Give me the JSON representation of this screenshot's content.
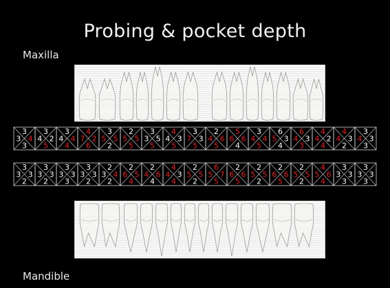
{
  "slide": {
    "title": "Probing & pocket depth",
    "maxilla_label": "Maxilla",
    "mandible_label": "Mandible"
  },
  "colors": {
    "background": "#000000",
    "text": "#f0f0f0",
    "normal_value": "#ffffff",
    "deep_pocket_value": "#e0262b",
    "grid_lines": "#d8d8d8"
  },
  "icons": {
    "upper_teeth": "maxillary-teeth-illustration",
    "lower_teeth": "mandibular-teeth-illustration"
  },
  "upper_row": [
    {
      "values": [
        "3",
        "3",
        "4",
        "3"
      ],
      "red": [
        false,
        false,
        true,
        false
      ]
    },
    {
      "values": [
        "3",
        "4",
        "2",
        "5"
      ],
      "red": [
        false,
        false,
        false,
        true
      ]
    },
    {
      "values": [
        "3",
        "4",
        "4",
        "4"
      ],
      "red": [
        false,
        false,
        true,
        true
      ]
    },
    {
      "values": [
        "4",
        "7",
        "2",
        "6"
      ],
      "red": [
        true,
        true,
        true,
        true
      ]
    },
    {
      "values": [
        "3",
        "5",
        "5",
        "2"
      ],
      "red": [
        false,
        true,
        true,
        false
      ]
    },
    {
      "values": [
        "2",
        "5",
        "5",
        "5"
      ],
      "red": [
        false,
        true,
        true,
        true
      ]
    },
    {
      "values": [
        "3",
        "3",
        "5",
        "5"
      ],
      "red": [
        false,
        false,
        false,
        true
      ]
    },
    {
      "values": [
        "4",
        "4",
        "3",
        "5"
      ],
      "red": [
        true,
        false,
        false,
        true
      ]
    },
    {
      "values": [
        "3",
        "7",
        "3",
        "5"
      ],
      "red": [
        false,
        true,
        false,
        true
      ]
    },
    {
      "values": [
        "2",
        "4",
        "6",
        "5"
      ],
      "red": [
        false,
        true,
        true,
        true
      ]
    },
    {
      "values": [
        "5",
        "6",
        "6",
        "4"
      ],
      "red": [
        true,
        true,
        true,
        false
      ]
    },
    {
      "values": [
        "3",
        "4",
        "4",
        "5"
      ],
      "red": [
        false,
        true,
        true,
        true
      ]
    },
    {
      "values": [
        "6",
        "5",
        "3",
        "4"
      ],
      "red": [
        false,
        true,
        false,
        false
      ]
    },
    {
      "values": [
        "6",
        "4",
        "3",
        "3"
      ],
      "red": [
        true,
        true,
        false,
        true
      ]
    },
    {
      "values": [
        "4",
        "4",
        "2",
        "4"
      ],
      "red": [
        true,
        true,
        false,
        true
      ]
    },
    {
      "values": [
        "4",
        "4",
        "3",
        "2"
      ],
      "red": [
        true,
        true,
        false,
        false
      ]
    },
    {
      "values": [
        "3",
        "4",
        "3",
        "3"
      ],
      "red": [
        false,
        true,
        false,
        false
      ]
    }
  ],
  "lower_row": [
    {
      "values": [
        "3",
        "3",
        "3",
        "2"
      ],
      "red": [
        false,
        false,
        false,
        false
      ]
    },
    {
      "values": [
        "3",
        "3",
        "3",
        "2"
      ],
      "red": [
        false,
        false,
        false,
        false
      ]
    },
    {
      "values": [
        "3",
        "3",
        "3",
        "3"
      ],
      "red": [
        false,
        false,
        false,
        false
      ]
    },
    {
      "values": [
        "3",
        "3",
        "3",
        "2"
      ],
      "red": [
        false,
        false,
        false,
        false
      ]
    },
    {
      "values": [
        "2",
        "3",
        "4",
        "2"
      ],
      "red": [
        false,
        false,
        true,
        false
      ]
    },
    {
      "values": [
        "2",
        "6",
        "5",
        "4"
      ],
      "red": [
        false,
        true,
        true,
        true
      ]
    },
    {
      "values": [
        "2",
        "4",
        "6",
        "4"
      ],
      "red": [
        false,
        true,
        true,
        false
      ]
    },
    {
      "values": [
        "4",
        "4",
        "3",
        "4"
      ],
      "red": [
        true,
        true,
        false,
        true
      ]
    },
    {
      "values": [
        "2",
        "5",
        "5",
        "2"
      ],
      "red": [
        false,
        true,
        true,
        false
      ]
    },
    {
      "values": [
        "6",
        "5",
        "7",
        "5"
      ],
      "red": [
        true,
        true,
        true,
        true
      ]
    },
    {
      "values": [
        "2",
        "6",
        "6",
        "5"
      ],
      "red": [
        false,
        true,
        true,
        true
      ]
    },
    {
      "values": [
        "2",
        "5",
        "5",
        "2"
      ],
      "red": [
        false,
        true,
        true,
        false
      ]
    },
    {
      "values": [
        "2",
        "6",
        "6",
        "5"
      ],
      "red": [
        false,
        true,
        true,
        true
      ]
    },
    {
      "values": [
        "2",
        "5",
        "5",
        "2"
      ],
      "red": [
        false,
        true,
        true,
        false
      ]
    },
    {
      "values": [
        "4",
        "5",
        "6",
        "4"
      ],
      "red": [
        true,
        true,
        true,
        true
      ]
    },
    {
      "values": [
        "3",
        "3",
        "3",
        "3"
      ],
      "red": [
        false,
        false,
        false,
        false
      ]
    },
    {
      "values": [
        "3",
        "3",
        "3",
        "3"
      ],
      "red": [
        false,
        false,
        false,
        false
      ]
    }
  ]
}
